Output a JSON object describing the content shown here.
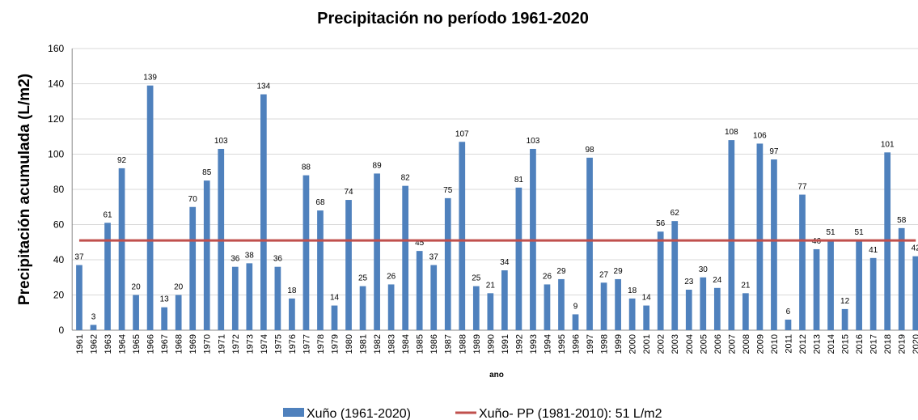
{
  "chart_data": {
    "type": "bar",
    "title": "Precipitación no período 1961-2020",
    "y_label": "Precipitación acumulada (L/m2)",
    "x_label": "ano",
    "categories": [
      "1961",
      "1962",
      "1963",
      "1964",
      "1965",
      "1966",
      "1967",
      "1968",
      "1969",
      "1970",
      "1971",
      "1972",
      "1973",
      "1974",
      "1975",
      "1976",
      "1977",
      "1978",
      "1979",
      "1980",
      "1981",
      "1982",
      "1983",
      "1984",
      "1985",
      "1986",
      "1987",
      "1988",
      "1989",
      "1990",
      "1991",
      "1992",
      "1993",
      "1994",
      "1995",
      "1996",
      "1997",
      "1998",
      "1999",
      "2000",
      "2001",
      "2002",
      "2003",
      "2004",
      "2005",
      "2006",
      "2007",
      "2008",
      "2009",
      "2010",
      "2011",
      "2012",
      "2013",
      "2014",
      "2015",
      "2016",
      "2017",
      "2018",
      "2019",
      "2020"
    ],
    "series": [
      {
        "name": "Xuño (1961-2020)",
        "type": "bar",
        "color": "#4f81bd",
        "values": [
          37,
          3,
          61,
          92,
          20,
          139,
          13,
          20,
          70,
          85,
          103,
          36,
          38,
          134,
          36,
          18,
          88,
          68,
          14,
          74,
          25,
          89,
          26,
          82,
          45,
          37,
          75,
          107,
          25,
          21,
          34,
          81,
          103,
          26,
          29,
          9,
          98,
          27,
          29,
          18,
          14,
          56,
          62,
          23,
          30,
          24,
          108,
          21,
          106,
          97,
          6,
          77,
          46,
          51,
          12,
          51,
          41,
          101,
          58,
          42
        ]
      },
      {
        "name": "Xuño- PP (1981-2010): 51 L/m2",
        "type": "line",
        "color": "#c0504d",
        "values": [
          51,
          51,
          51,
          51,
          51,
          51,
          51,
          51,
          51,
          51,
          51,
          51,
          51,
          51,
          51,
          51,
          51,
          51,
          51,
          51,
          51,
          51,
          51,
          51,
          51,
          51,
          51,
          51,
          51,
          51,
          51,
          51,
          51,
          51,
          51,
          51,
          51,
          51,
          51,
          51,
          51,
          51,
          51,
          51,
          51,
          51,
          51,
          51,
          51,
          51,
          51,
          51,
          51,
          51,
          51,
          51,
          51,
          51,
          51,
          51
        ]
      }
    ],
    "ylim": [
      0,
      160
    ],
    "yticks": [
      0,
      20,
      40,
      60,
      80,
      100,
      120,
      140,
      160
    ],
    "grid": true,
    "legend": "bottom"
  }
}
